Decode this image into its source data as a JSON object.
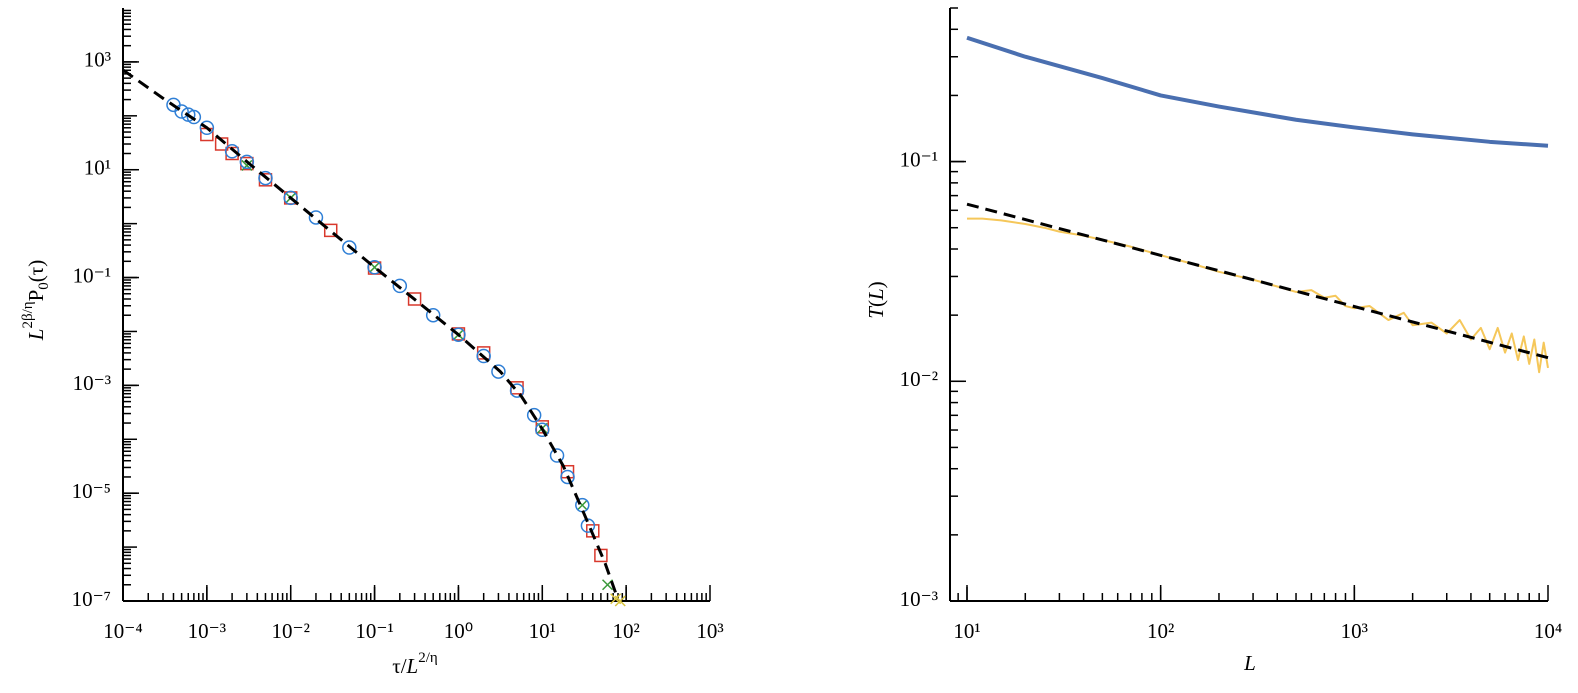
{
  "chart_data": [
    {
      "type": "scatter",
      "xlabel": [
        {
          "text": "τ/"
        },
        {
          "text": "L",
          "italic": true
        },
        {
          "text": "2/η",
          "sup": true
        }
      ],
      "ylabel": [
        {
          "text": "L",
          "italic": true
        },
        {
          "text": "2β/η",
          "sup": true
        },
        {
          "text": "P"
        },
        {
          "text": "0",
          "sub": true
        },
        {
          "text": "(τ)"
        }
      ],
      "xlog": true,
      "ylog": true,
      "minor_ticks": true,
      "xlim": [
        0.0001,
        1000
      ],
      "ylim": [
        1e-07,
        10000
      ],
      "xticks": [
        {
          "value": 0.0001,
          "label": "10⁻⁴"
        },
        {
          "value": 0.001,
          "label": "10⁻³"
        },
        {
          "value": 0.01,
          "label": "10⁻²"
        },
        {
          "value": 0.1,
          "label": "10⁻¹"
        },
        {
          "value": 1,
          "label": "10⁰"
        },
        {
          "value": 10,
          "label": "10¹"
        },
        {
          "value": 100,
          "label": "10²"
        },
        {
          "value": 1000,
          "label": "10³"
        }
      ],
      "yticks": [
        {
          "value": 1e-07,
          "label": "10⁻⁷"
        },
        {
          "value": 1e-05,
          "label": "10⁻⁵"
        },
        {
          "value": 0.001,
          "label": "10⁻³"
        },
        {
          "value": 0.1,
          "label": "10⁻¹"
        },
        {
          "value": 10,
          "label": "10¹"
        },
        {
          "value": 1000,
          "label": "10³"
        }
      ],
      "series": [
        {
          "marker": "square",
          "color": "#d9382c",
          "x": [
            0.001,
            0.0015,
            0.002,
            0.003,
            0.005,
            0.01,
            0.03,
            0.1,
            0.3,
            1,
            2,
            5,
            10,
            20,
            40,
            50
          ],
          "values": [
            45,
            30,
            20,
            13,
            6.5,
            3,
            0.75,
            0.15,
            0.04,
            0.009,
            0.004,
            0.0009,
            0.00017,
            2.5e-05,
            2e-06,
            7e-07
          ]
        },
        {
          "marker": "x",
          "color": "#3a9a3a",
          "x": [
            0.003,
            0.01,
            0.1,
            1,
            10,
            30,
            60
          ],
          "values": [
            12,
            3,
            0.155,
            0.0087,
            0.00016,
            6e-06,
            2e-07
          ]
        },
        {
          "marker": "circle",
          "color": "#2f7fd6",
          "x": [
            0.0004,
            0.0005,
            0.0006,
            0.0007,
            0.001,
            0.002,
            0.003,
            0.005,
            0.01,
            0.02,
            0.05,
            0.1,
            0.2,
            0.5,
            1,
            2,
            3,
            5,
            8,
            10,
            15,
            20,
            30,
            35
          ],
          "values": [
            160,
            120,
            105,
            95,
            60,
            22,
            14,
            7,
            3,
            1.3,
            0.36,
            0.155,
            0.07,
            0.02,
            0.0087,
            0.0035,
            0.0018,
            0.0008,
            0.00028,
            0.00015,
            5e-05,
            2e-05,
            6e-06,
            2.5e-06
          ]
        },
        {
          "marker": "x",
          "color": "#d8c23a",
          "x": [
            75,
            85
          ],
          "values": [
            1.1e-07,
            1e-07
          ]
        },
        {
          "line": "dashed",
          "color": "#000000",
          "x": [
            0.0001,
            0.000316,
            0.001,
            0.00316,
            0.01,
            0.0316,
            0.1,
            0.316,
            1,
            3.16,
            5.62,
            10,
            17.8,
            31.6,
            56.2,
            79.4
          ],
          "values": [
            708,
            200,
            60,
            13.2,
            3,
            0.68,
            0.155,
            0.037,
            0.0087,
            0.0018,
            0.00063,
            0.000155,
            3.2e-05,
            4.1e-06,
            5e-07,
            1.1e-07
          ]
        }
      ]
    },
    {
      "type": "line",
      "xlabel": [
        {
          "text": "L",
          "italic": true
        }
      ],
      "ylabel": [
        {
          "text": "T",
          "italic": true
        },
        {
          "text": "("
        },
        {
          "text": "L",
          "italic": true
        },
        {
          "text": ")"
        }
      ],
      "xlog": true,
      "ylog": true,
      "minor_ticks": true,
      "xlim": [
        8.17,
        10000
      ],
      "ylim": [
        0.001,
        0.5
      ],
      "xticks": [
        {
          "value": 10,
          "label": "10¹"
        },
        {
          "value": 100,
          "label": "10²"
        },
        {
          "value": 1000,
          "label": "10³"
        },
        {
          "value": 10000,
          "label": "10⁴"
        }
      ],
      "yticks": [
        {
          "value": 0.001,
          "label": "10⁻³"
        },
        {
          "value": 0.01,
          "label": "10⁻²"
        },
        {
          "value": 0.1,
          "label": "10⁻¹"
        }
      ],
      "series": [
        {
          "line": "solid",
          "width": 4,
          "color": "#4a6fb0",
          "x": [
            10,
            20,
            50,
            100,
            200,
            500,
            1000,
            2000,
            5000,
            10000
          ],
          "values": [
            0.366,
            0.3,
            0.24,
            0.2,
            0.178,
            0.155,
            0.143,
            0.133,
            0.123,
            0.118
          ]
        },
        {
          "line": "solid",
          "width": 2,
          "color": "#f5c75a",
          "x": [
            10,
            12,
            15,
            20,
            25,
            30,
            40,
            50,
            70,
            100,
            150,
            200,
            300,
            400,
            500,
            600,
            700,
            800,
            900,
            1000,
            1200,
            1500,
            1800,
            2000,
            2500,
            3000,
            3500,
            4000,
            4500,
            5000,
            5500,
            6000,
            6500,
            7000,
            7500,
            8000,
            8500,
            9000,
            9500,
            10000
          ],
          "values": [
            0.055,
            0.055,
            0.054,
            0.052,
            0.05,
            0.048,
            0.046,
            0.044,
            0.041,
            0.0375,
            0.034,
            0.0315,
            0.029,
            0.027,
            0.0255,
            0.026,
            0.024,
            0.0245,
            0.022,
            0.0215,
            0.022,
            0.019,
            0.0205,
            0.018,
            0.0185,
            0.0165,
            0.019,
            0.0155,
            0.0175,
            0.014,
            0.0175,
            0.0135,
            0.0165,
            0.0125,
            0.016,
            0.012,
            0.0155,
            0.011,
            0.015,
            0.0115
          ]
        },
        {
          "line": "dashed",
          "width": 3,
          "color": "#000000",
          "x": [
            10,
            10000
          ],
          "values": [
            0.064,
            0.0128
          ]
        }
      ]
    }
  ]
}
